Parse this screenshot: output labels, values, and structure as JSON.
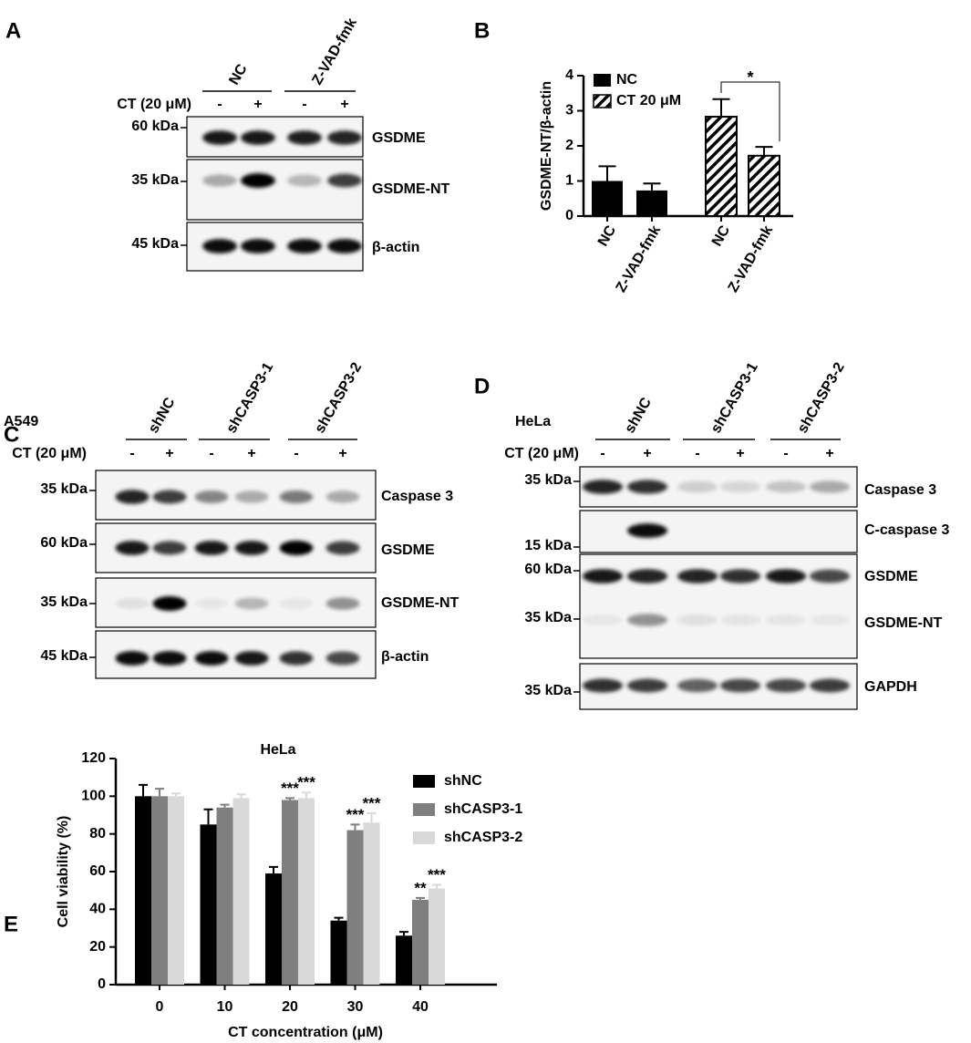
{
  "panel_a": {
    "label": "A",
    "groups": [
      "NC",
      "Z-VAD-fmk"
    ],
    "treatment": "CT (20 μM)",
    "signs": [
      "-",
      "+",
      "-",
      "+"
    ],
    "rows": [
      {
        "marker": "60 kDa",
        "protein": "GSDME"
      },
      {
        "marker": "35 kDa",
        "protein": "GSDME-NT"
      },
      {
        "marker": "45 kDa",
        "protein": "β-actin"
      }
    ]
  },
  "panel_c": {
    "label": "C",
    "cell_line": "A549",
    "groups": [
      "shNC",
      "shCASP3-1",
      "shCASP3-2"
    ],
    "treatment": "CT (20 μM)",
    "signs": [
      "-",
      "+",
      "-",
      "+",
      "-",
      "+"
    ],
    "rows": [
      {
        "marker": "35 kDa",
        "protein": "Caspase 3"
      },
      {
        "marker": "60 kDa",
        "protein": "GSDME"
      },
      {
        "marker": "35 kDa",
        "protein": "GSDME-NT"
      },
      {
        "marker": "45 kDa",
        "protein": "β-actin"
      }
    ]
  },
  "panel_d": {
    "label": "D",
    "cell_line": "HeLa",
    "groups": [
      "shNC",
      "shCASP3-1",
      "shCASP3-2"
    ],
    "treatment": "CT (20 μM)",
    "signs": [
      "-",
      "+",
      "-",
      "+",
      "-",
      "+"
    ],
    "rows": [
      {
        "marker": "35 kDa",
        "protein": "Caspase 3"
      },
      {
        "marker": "15 kDa",
        "protein": "C-caspase 3"
      },
      {
        "marker": "60 kDa",
        "protein": "GSDME"
      },
      {
        "marker": "35 kDa",
        "protein": "GSDME-NT"
      },
      {
        "marker": "35 kDa",
        "protein": "GAPDH"
      }
    ]
  },
  "chart_data": [
    {
      "type": "bar",
      "panel_label": "B",
      "y_label": "GSDME-NT/β-actin",
      "categories": [
        "NC",
        "Z-VAD-fmk",
        "NC",
        "Z-VAD-fmk"
      ],
      "series": [
        {
          "name": "NC",
          "color": "#000000",
          "hatch": false,
          "values": [
            1.0,
            0.73,
            null,
            null
          ],
          "errors": [
            0.42,
            0.2,
            null,
            null
          ]
        },
        {
          "name": "CT 20 μM",
          "color": "#000000",
          "hatch": true,
          "values": [
            null,
            null,
            2.83,
            1.72
          ],
          "errors": [
            null,
            null,
            0.5,
            0.25
          ]
        }
      ],
      "annotation": "*",
      "ylim": [
        0,
        4
      ],
      "yticks": [
        0,
        1,
        2,
        3,
        4
      ],
      "grid": false
    },
    {
      "type": "grouped-bar",
      "panel_label": "E",
      "title": "HeLa",
      "x_label": "CT concentration (μM)",
      "y_label": "Cell viability (%)",
      "categories": [
        0,
        10,
        20,
        30,
        40
      ],
      "series": [
        {
          "name": "shNC",
          "color": "#000000",
          "values": [
            100,
            85,
            59,
            34,
            26
          ],
          "errors": [
            6,
            8,
            3.5,
            1.5,
            2
          ],
          "significance": [
            null,
            null,
            null,
            null,
            null
          ]
        },
        {
          "name": "shCASP3-1",
          "color": "#7f7f7f",
          "values": [
            100,
            94,
            98,
            82,
            45
          ],
          "errors": [
            4,
            1.5,
            1,
            3,
            1
          ],
          "significance": [
            null,
            null,
            "***",
            "***",
            "**"
          ]
        },
        {
          "name": "shCASP3-2",
          "color": "#d9d9d9",
          "values": [
            100,
            99,
            99,
            86,
            51
          ],
          "errors": [
            1.5,
            2,
            3,
            5,
            2
          ],
          "significance": [
            null,
            null,
            "***",
            "***",
            "***"
          ]
        }
      ],
      "ylim": [
        0,
        120
      ],
      "yticks": [
        0,
        20,
        40,
        60,
        80,
        100,
        120
      ],
      "grid": false
    }
  ]
}
